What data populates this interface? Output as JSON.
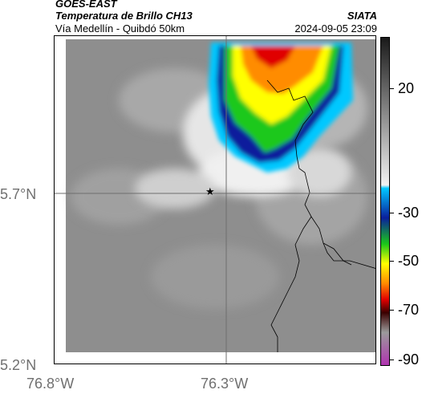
{
  "header": {
    "satellite": "GOES-EAST",
    "product": "Temperatura de Brillo CH13",
    "route": "Vía Medellín - Quibdó 50km",
    "org": "SIATA",
    "datetime": "2024-09-05 23:09"
  },
  "map": {
    "x_ticks": [
      "76.8°W",
      "76.3°W"
    ],
    "y_ticks": [
      "5.7°N",
      "5.2°N"
    ],
    "marker_symbol": "★"
  },
  "colorbar": {
    "labels": [
      "20",
      "-30",
      "-50",
      "-70",
      "-90"
    ],
    "colors": {
      "gray_dark": "#1a1a1a",
      "gray_light": "#f2f2f2",
      "cyan": "#00c8ff",
      "blue": "#0a1f9c",
      "green": "#1ac81a",
      "yellow": "#ffff00",
      "orange": "#ff8c00",
      "red": "#e00000",
      "dark_red": "#3a0000",
      "gray_cold": "#9a9a9a",
      "magenta": "#b033b0"
    }
  }
}
